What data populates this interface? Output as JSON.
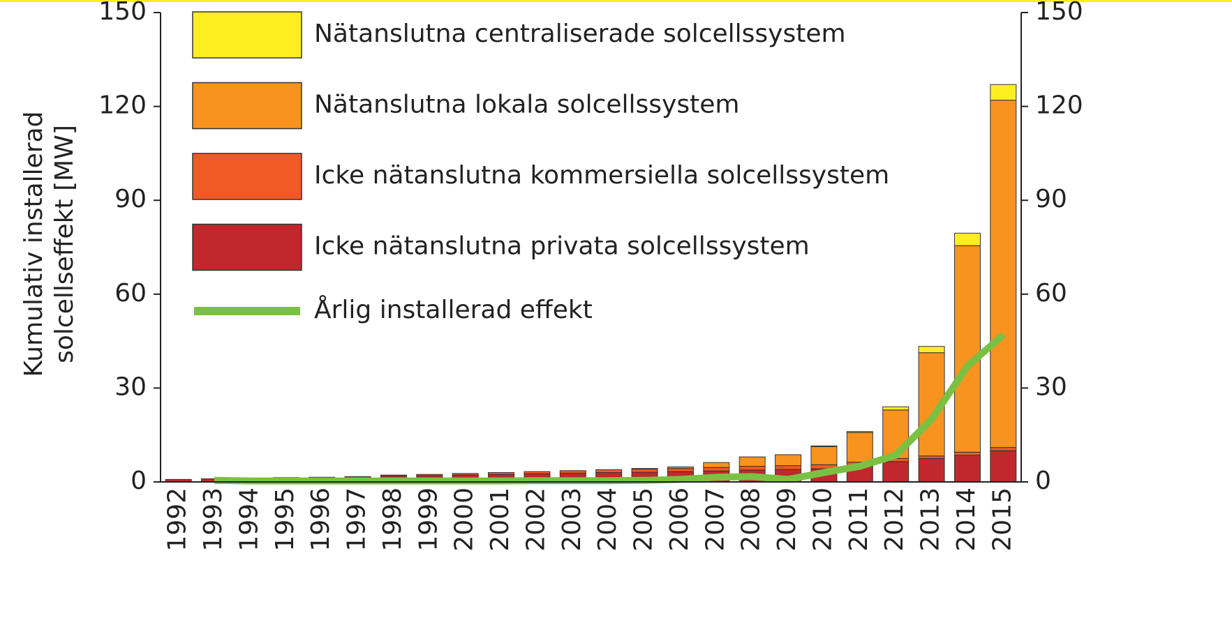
{
  "chart_data": {
    "type": "bar",
    "stacked": true,
    "y_label": "Kumulativ installerad solcellseffekt [MW]",
    "categories": [
      "1992",
      "1993",
      "1994",
      "1995",
      "1996",
      "1997",
      "1998",
      "1999",
      "2000",
      "2001",
      "2002",
      "2003",
      "2004",
      "2005",
      "2006",
      "2007",
      "2008",
      "2009",
      "2010",
      "2011",
      "2012",
      "2013",
      "2014",
      "2015"
    ],
    "series": [
      {
        "name": "Icke nätanslutna privata solcellssystem",
        "color": "#c1272d",
        "values": [
          0.8,
          1.0,
          1.2,
          1.4,
          1.5,
          1.7,
          1.9,
          2.0,
          2.2,
          2.4,
          2.6,
          2.8,
          3.0,
          3.1,
          3.3,
          3.5,
          3.8,
          4.0,
          4.2,
          5.0,
          6.5,
          7.5,
          8.5,
          10
        ]
      },
      {
        "name": "Icke nätanslutna kommersiella solcellssystem",
        "color": "#f15a24",
        "values": [
          0,
          0,
          0,
          0,
          0,
          0,
          0.3,
          0.4,
          0.5,
          0.6,
          0.7,
          0.8,
          0.9,
          1.0,
          1.0,
          1.1,
          1.2,
          1.2,
          1.3,
          1.3,
          1.0,
          0.8,
          1.0,
          1.0
        ]
      },
      {
        "name": "Nätanslutna lokala solcellssystem",
        "color": "#f7931e",
        "values": [
          0,
          0,
          0,
          0,
          0,
          0,
          0,
          0,
          0,
          0,
          0,
          0,
          0,
          0.2,
          0.5,
          1.6,
          3.0,
          3.5,
          5.8,
          9.5,
          15.5,
          33,
          66,
          111
        ]
      },
      {
        "name": "Nätanslutna centraliserade solcellssystem",
        "color": "#fcee21",
        "values": [
          0,
          0,
          0,
          0,
          0,
          0,
          0,
          0,
          0,
          0,
          0,
          0,
          0,
          0,
          0,
          0,
          0,
          0,
          0.2,
          0.3,
          1.0,
          2.0,
          4.0,
          5.0
        ]
      },
      {
        "name": "Årlig installerad effekt",
        "color": "#7ac143",
        "type": "line",
        "axis": "y2",
        "values": [
          null,
          0.5,
          0.3,
          0.3,
          0.3,
          0.3,
          0.3,
          0.3,
          0.3,
          0.3,
          0.4,
          0.4,
          0.4,
          0.5,
          0.8,
          1.5,
          1.7,
          0.8,
          3,
          5,
          8.5,
          20,
          37,
          47
        ]
      }
    ],
    "ylim": [
      0,
      150
    ],
    "yticks": [
      0,
      30,
      60,
      90,
      120,
      150
    ],
    "y2lim": [
      0,
      150
    ],
    "y2ticks": [
      0,
      30,
      60,
      90,
      120,
      150
    ],
    "legend": "upper left"
  }
}
